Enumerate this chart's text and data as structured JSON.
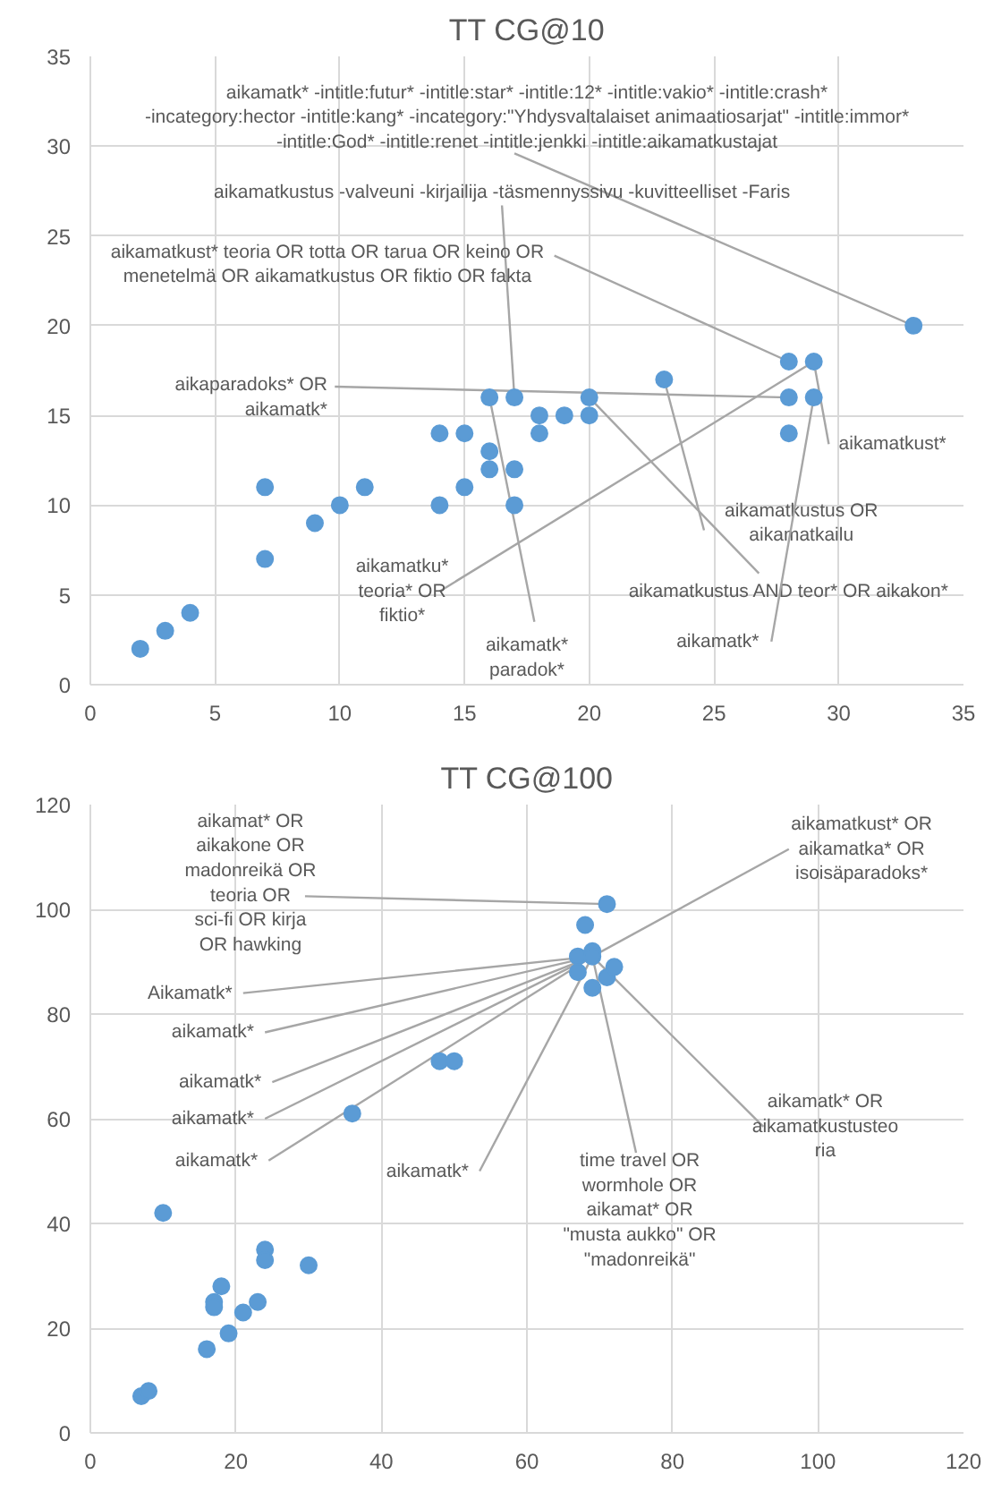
{
  "chart_data": [
    {
      "type": "scatter",
      "title": "TT CG@10",
      "color": "#5b9bd5",
      "marker": "circle",
      "grid": true,
      "x": [
        2,
        3,
        4,
        7,
        7,
        9,
        10,
        11,
        14,
        14,
        15,
        15,
        16,
        16,
        16,
        17,
        17,
        17,
        18,
        18,
        19,
        20,
        20,
        23,
        28,
        28,
        28,
        29,
        29,
        33
      ],
      "values": [
        2,
        3,
        4,
        11,
        7,
        9,
        10,
        11,
        14,
        10,
        14,
        11,
        16,
        13,
        12,
        16,
        12,
        10,
        15,
        14,
        15,
        16,
        15,
        17,
        18,
        16,
        14,
        18,
        16,
        20
      ],
      "xlim": [
        0,
        35
      ],
      "ylim": [
        0,
        35
      ],
      "xticks": [
        0,
        5,
        10,
        15,
        20,
        25,
        30,
        35
      ],
      "yticks": [
        0,
        5,
        10,
        15,
        20,
        25,
        30,
        35
      ],
      "annotations": [
        {
          "text": "aikamatk* -intitle:futur* -intitle:star* -intitle:12* -intitle:vakio* -intitle:crash* -incategory:hector -intitle:kang* -incategory:\"Yhdysvaltalaiset animaatiosarjat\" -intitle:immor* -intitle:God* -intitle:renet -intitle:jenkki -intitle:aikamatkustajat",
          "x": 33,
          "y": 20
        },
        {
          "text": "aikamatkustus -valveuni -kirjailija -täsmennyssivu -kuvitteelliset -Faris",
          "x": 17,
          "y": 16
        },
        {
          "text": "aikamatkust* teoria OR totta OR tarua OR keino OR menetelmä OR aikamatkustus OR fiktio OR fakta",
          "x": 28,
          "y": 18
        },
        {
          "text": "aikaparadoks* OR aikamatk*",
          "x": 28,
          "y": 16
        },
        {
          "text": "aikamatkust*",
          "x": 29,
          "y": 18
        },
        {
          "text": "aikamatkustus OR aikamatkailu",
          "x": 23,
          "y": 17
        },
        {
          "text": "aikamatkustus AND teor* OR aikakon*",
          "x": 20,
          "y": 16
        },
        {
          "text": "aikamatku* teoria* OR fiktio*",
          "x": 29,
          "y": 18
        },
        {
          "text": "aikamatk* paradok*",
          "x": 16,
          "y": 16
        },
        {
          "text": "aikamatk*",
          "x": 29,
          "y": 16
        }
      ]
    },
    {
      "type": "scatter",
      "title": "TT CG@100",
      "color": "#5b9bd5",
      "marker": "circle",
      "grid": true,
      "x": [
        7,
        8,
        10,
        16,
        17,
        17,
        18,
        19,
        21,
        23,
        24,
        24,
        30,
        36,
        48,
        50,
        67,
        67,
        68,
        69,
        69,
        69,
        71,
        71,
        72
      ],
      "values": [
        7,
        8,
        42,
        16,
        25,
        24,
        28,
        19,
        23,
        25,
        35,
        33,
        32,
        61,
        71,
        71,
        91,
        88,
        97,
        92,
        91,
        85,
        101,
        87,
        89
      ],
      "xlim": [
        0,
        120
      ],
      "ylim": [
        0,
        120
      ],
      "xticks": [
        0,
        20,
        40,
        60,
        80,
        100,
        120
      ],
      "yticks": [
        0,
        20,
        40,
        60,
        80,
        100,
        120
      ],
      "annotations": [
        {
          "text": "aikamat* OR aikakone OR madonreikä OR teoria OR sci-fi OR kirja OR hawking",
          "x": 71,
          "y": 101
        },
        {
          "text": "aikamatkust* OR aikamatka* OR isoisäparadoks*",
          "x": 69,
          "y": 91
        },
        {
          "text": "Aikamatk*",
          "x": 69,
          "y": 91
        },
        {
          "text": "aikamatk*",
          "x": 69,
          "y": 91
        },
        {
          "text": "aikamatk*",
          "x": 69,
          "y": 91
        },
        {
          "text": "aikamatk*",
          "x": 69,
          "y": 91
        },
        {
          "text": "aikamatk*",
          "x": 69,
          "y": 91
        },
        {
          "text": "aikamatk*",
          "x": 69,
          "y": 91
        },
        {
          "text": "time travel OR wormhole OR aikamat* OR \"musta aukko\" OR \"madonreikä\"",
          "x": 69,
          "y": 91
        },
        {
          "text": "aikamatk* OR aikamatkustusteoria",
          "x": 69,
          "y": 91
        }
      ]
    }
  ]
}
